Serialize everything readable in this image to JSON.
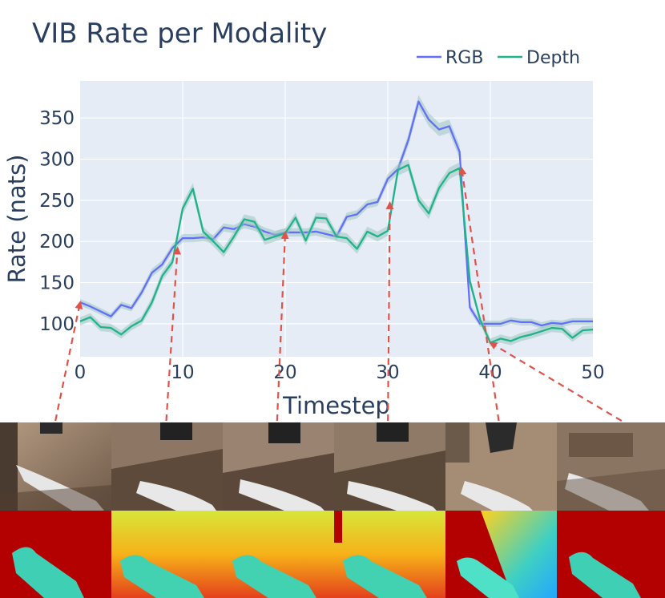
{
  "chart_data": {
    "type": "line",
    "title": "VIB Rate per Modality",
    "xlabel": "Timestep",
    "ylabel": "Rate (nats)",
    "xlim": [
      0,
      50
    ],
    "ylim": [
      60,
      395
    ],
    "xticks": [
      0,
      10,
      20,
      30,
      40,
      50
    ],
    "yticks": [
      100,
      150,
      200,
      250,
      300,
      350
    ],
    "grid": true,
    "legend_position": "top-right",
    "x": [
      0,
      1,
      2,
      3,
      4,
      5,
      6,
      7,
      8,
      9,
      10,
      11,
      12,
      13,
      14,
      15,
      16,
      17,
      18,
      19,
      20,
      21,
      22,
      23,
      24,
      25,
      26,
      27,
      28,
      29,
      30,
      31,
      32,
      33,
      34,
      35,
      36,
      37,
      38,
      39,
      40,
      41,
      42,
      43,
      44,
      45,
      46,
      47,
      48,
      49,
      50
    ],
    "series": [
      {
        "name": "RGB",
        "color": "#636efa",
        "band_color": "#9ec7c0",
        "values": [
          126,
          121,
          115,
          109,
          123,
          119,
          138,
          162,
          172,
          192,
          204,
          204,
          205,
          203,
          217,
          215,
          221,
          218,
          212,
          208,
          211,
          211,
          211,
          212,
          209,
          206,
          230,
          233,
          245,
          248,
          276,
          288,
          323,
          370,
          348,
          336,
          340,
          309,
          120,
          100,
          100,
          100,
          104,
          102,
          102,
          98,
          101,
          100,
          103,
          103,
          103
        ],
        "band": [
          4,
          4,
          4,
          4,
          4,
          4,
          5,
          5,
          5,
          5,
          5,
          5,
          5,
          5,
          5,
          5,
          5,
          5,
          5,
          5,
          5,
          5,
          5,
          5,
          5,
          5,
          5,
          5,
          5,
          5,
          6,
          6,
          7,
          8,
          8,
          8,
          8,
          8,
          5,
          4,
          4,
          4,
          4,
          4,
          4,
          4,
          4,
          4,
          4,
          4,
          4
        ]
      },
      {
        "name": "Depth",
        "color": "#1fb389",
        "band_color": "#9ec7c0",
        "values": [
          103,
          108,
          96,
          95,
          87,
          97,
          104,
          126,
          158,
          175,
          240,
          264,
          212,
          200,
          187,
          206,
          227,
          224,
          202,
          206,
          210,
          229,
          201,
          229,
          228,
          206,
          204,
          191,
          212,
          206,
          213,
          287,
          293,
          250,
          234,
          265,
          283,
          289,
          152,
          105,
          77,
          82,
          79,
          84,
          87,
          91,
          95,
          94,
          83,
          92,
          93
        ],
        "band": [
          5,
          5,
          5,
          5,
          5,
          5,
          5,
          6,
          6,
          6,
          7,
          7,
          6,
          6,
          6,
          6,
          6,
          6,
          6,
          6,
          6,
          6,
          6,
          6,
          6,
          6,
          6,
          6,
          6,
          6,
          6,
          7,
          7,
          7,
          7,
          7,
          7,
          7,
          6,
          5,
          5,
          5,
          5,
          5,
          5,
          5,
          5,
          5,
          5,
          5,
          5
        ]
      }
    ],
    "annotations": [
      {
        "type": "arrow",
        "from_image": 1,
        "to_x": 0,
        "to_y": 126
      },
      {
        "type": "arrow",
        "from_image": 2,
        "to_x": 9.5,
        "to_y": 192
      },
      {
        "type": "arrow",
        "from_image": 3,
        "to_x": 20,
        "to_y": 211
      },
      {
        "type": "arrow",
        "from_image": 4,
        "to_x": 30.2,
        "to_y": 247
      },
      {
        "type": "arrow",
        "from_image": 5,
        "to_x": 37.2,
        "to_y": 289
      },
      {
        "type": "arrow",
        "from_image": 6,
        "to_x": 40,
        "to_y": 77
      }
    ]
  },
  "image_strip": {
    "rgb_frames": [
      "rgb-frame-1",
      "rgb-frame-2",
      "rgb-frame-3",
      "rgb-frame-4",
      "rgb-frame-5",
      "rgb-frame-6"
    ],
    "depth_frames": [
      "depth-frame-1",
      "depth-frame-2",
      "depth-frame-3",
      "depth-frame-4",
      "depth-frame-5",
      "depth-frame-6"
    ]
  }
}
